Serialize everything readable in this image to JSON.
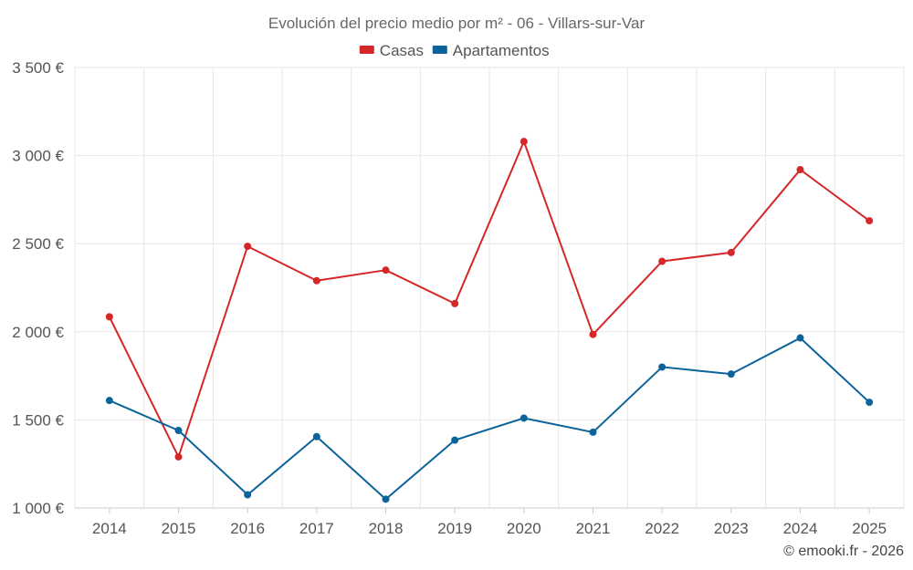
{
  "chart_data": {
    "type": "line",
    "title": "Evolución del precio medio por m² - 06 - Villars-sur-Var",
    "categories": [
      "2014",
      "2015",
      "2016",
      "2017",
      "2018",
      "2019",
      "2020",
      "2021",
      "2022",
      "2023",
      "2024",
      "2025"
    ],
    "series": [
      {
        "name": "Casas",
        "color": "#d62728",
        "values": [
          2085,
          1290,
          2485,
          2290,
          2350,
          2160,
          3080,
          1985,
          2400,
          2450,
          2920,
          2630
        ]
      },
      {
        "name": "Apartamentos",
        "color": "#0b6399",
        "values": [
          1610,
          1440,
          1075,
          1405,
          1050,
          1385,
          1510,
          1430,
          1800,
          1760,
          1965,
          1600
        ]
      }
    ],
    "y_ticks": [
      1000,
      1500,
      2000,
      2500,
      3000,
      3500
    ],
    "y_tick_labels": [
      "1 000 €",
      "1 500 €",
      "2 000 €",
      "2 500 €",
      "3 000 €",
      "3 500 €"
    ],
    "ylim": [
      1000,
      3500
    ],
    "grid": true,
    "legend_position": "top-center",
    "xlabel": "",
    "ylabel": ""
  },
  "credit": "© emooki.fr - 2026"
}
